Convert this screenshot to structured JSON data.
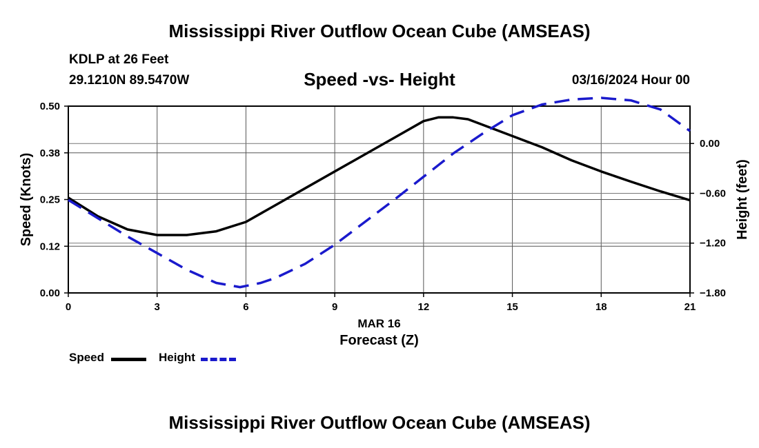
{
  "header": {
    "main_title": "Mississippi River Outflow Ocean Cube (AMSEAS)",
    "station": "KDLP at 26 Feet",
    "coords": "29.1210N  89.5470W",
    "subtitle": "Speed -vs- Height",
    "datetime": "03/16/2024 Hour 00"
  },
  "footer": {
    "title": "Mississippi River Outflow Ocean Cube (AMSEAS)"
  },
  "legend": {
    "speed_label": "Speed",
    "height_label": "Height"
  },
  "colors": {
    "speed": "#000000",
    "height": "#1a1acc",
    "grid": "#000000"
  },
  "chart_data": {
    "type": "line",
    "title": "Speed -vs- Height",
    "xlabel": "Forecast (Z)",
    "xlabel_date": "MAR 16",
    "ylabel": "Speed (Knots)",
    "y2label": "Height (feet)",
    "xlim": [
      0,
      21
    ],
    "ylim": [
      0,
      0.5
    ],
    "y2lim": [
      -1.8,
      0.45
    ],
    "x_ticks": [
      0,
      3,
      6,
      9,
      12,
      15,
      18,
      21
    ],
    "x_tick_labels": [
      "0",
      "3",
      "6",
      "9",
      "12",
      "15",
      "18",
      "21"
    ],
    "y_ticks": [
      0.0,
      0.125,
      0.25,
      0.375,
      0.5
    ],
    "y_tick_labels": [
      "0.00",
      "0.12",
      "0.25",
      "0.38",
      "0.50"
    ],
    "y2_ticks": [
      -1.8,
      -1.2,
      -0.6,
      0.0
    ],
    "y2_tick_labels": [
      "−1.80",
      "−1.20",
      "−0.60",
      "0.00"
    ],
    "grid": true,
    "series": [
      {
        "name": "Speed",
        "axis": "left",
        "style": "solid",
        "x": [
          0,
          1,
          2,
          3,
          4,
          5,
          6,
          7,
          8,
          9,
          10,
          11,
          12,
          12.5,
          13,
          13.5,
          14,
          15,
          16,
          17,
          18,
          19,
          20,
          21
        ],
        "values": [
          0.255,
          0.205,
          0.17,
          0.155,
          0.155,
          0.165,
          0.19,
          0.235,
          0.28,
          0.325,
          0.37,
          0.415,
          0.46,
          0.47,
          0.47,
          0.465,
          0.45,
          0.42,
          0.39,
          0.355,
          0.325,
          0.298,
          0.272,
          0.248
        ]
      },
      {
        "name": "Height",
        "axis": "right",
        "style": "dashed",
        "x": [
          0,
          1,
          2,
          3,
          4,
          5,
          5.8,
          6.5,
          7,
          8,
          9,
          10,
          11,
          12,
          13,
          14,
          15,
          16,
          17,
          18,
          19,
          20,
          21
        ],
        "values": [
          -0.68,
          -0.9,
          -1.12,
          -1.32,
          -1.52,
          -1.68,
          -1.73,
          -1.68,
          -1.62,
          -1.45,
          -1.22,
          -0.95,
          -0.68,
          -0.4,
          -0.12,
          0.12,
          0.34,
          0.47,
          0.53,
          0.55,
          0.52,
          0.41,
          0.15
        ]
      }
    ]
  }
}
